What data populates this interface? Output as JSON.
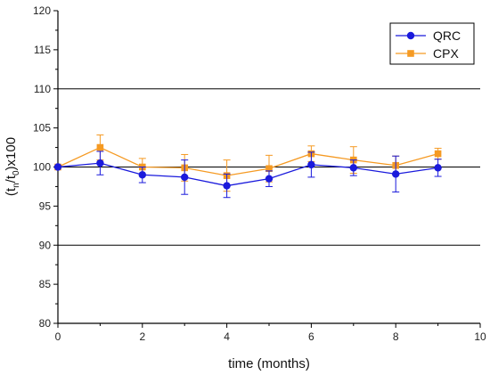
{
  "chart_data": {
    "type": "line",
    "xlabel": "time (months)",
    "ylabel": {
      "prefix": "(t",
      "sub1": "n",
      "mid": "/t",
      "sub2": "0",
      "suffix": ")x100"
    },
    "xlim": [
      0,
      10
    ],
    "ylim": [
      80,
      120
    ],
    "xticks": [
      "0",
      "2",
      "4",
      "6",
      "8",
      "10"
    ],
    "yticks": [
      "80",
      "85",
      "90",
      "95",
      "100",
      "105",
      "110",
      "115",
      "120"
    ],
    "reference_lines": [
      90,
      100,
      110
    ],
    "grid": false,
    "legend_position": "top-right",
    "x": [
      0,
      1,
      2,
      3,
      4,
      5,
      6,
      7,
      8,
      9
    ],
    "series": [
      {
        "name": "QRC",
        "color": "#1a1adc",
        "marker": "circle",
        "values": [
          100,
          100.5,
          99.0,
          98.7,
          97.6,
          98.5,
          100.3,
          99.9,
          99.1,
          99.9
        ],
        "errors": [
          0,
          1.5,
          1.0,
          2.2,
          1.5,
          1.0,
          1.6,
          1.0,
          2.3,
          1.1
        ]
      },
      {
        "name": "CPX",
        "color": "#f59a23",
        "marker": "square",
        "values": [
          100,
          102.5,
          100.0,
          99.9,
          98.9,
          99.8,
          101.7,
          100.9,
          100.2,
          101.7
        ],
        "errors": [
          0,
          1.6,
          1.1,
          1.7,
          2.0,
          1.7,
          1.0,
          1.7,
          1.2,
          0.7
        ]
      }
    ]
  }
}
